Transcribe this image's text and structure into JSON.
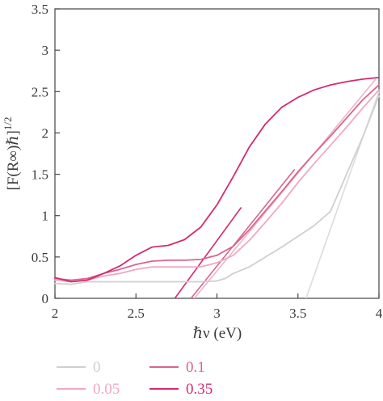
{
  "chart_data": {
    "type": "line",
    "xlabel": "ℏν (eV)",
    "ylabel": "[F(R∞)ℏ]^{1/2}",
    "ylabel_parts": {
      "main": "[F(R∞)ℏ]",
      "sup": "1/2"
    },
    "xlim": [
      2,
      4
    ],
    "ylim": [
      0,
      3.5
    ],
    "xticks": [
      "2",
      "2.5",
      "3",
      "3.5",
      "4"
    ],
    "yticks": [
      "0",
      "0.5",
      "1",
      "1.5",
      "2",
      "2.5",
      "3",
      "3.5"
    ],
    "grid": false,
    "legend_position": "bottom, two columns",
    "series": [
      {
        "name": "0",
        "color": "#cfcfcf",
        "x": [
          2.0,
          2.1,
          2.2,
          2.4,
          2.6,
          2.8,
          2.9,
          3.0,
          3.05,
          3.1,
          3.2,
          3.3,
          3.4,
          3.5,
          3.6,
          3.7,
          3.8,
          3.9,
          4.0
        ],
        "y": [
          0.18,
          0.17,
          0.2,
          0.2,
          0.2,
          0.2,
          0.2,
          0.21,
          0.24,
          0.3,
          0.38,
          0.5,
          0.62,
          0.75,
          0.88,
          1.05,
          1.5,
          1.95,
          2.45
        ]
      },
      {
        "name": "0.05",
        "color": "#f0a8c0",
        "x": [
          2.0,
          2.1,
          2.2,
          2.3,
          2.4,
          2.5,
          2.6,
          2.7,
          2.8,
          2.9,
          3.0,
          3.1,
          3.2,
          3.3,
          3.4,
          3.5,
          3.6,
          3.7,
          3.8,
          3.9,
          4.0
        ],
        "y": [
          0.22,
          0.2,
          0.22,
          0.27,
          0.3,
          0.35,
          0.38,
          0.38,
          0.38,
          0.38,
          0.43,
          0.52,
          0.7,
          0.92,
          1.15,
          1.4,
          1.63,
          1.85,
          2.07,
          2.3,
          2.52
        ]
      },
      {
        "name": "0.1",
        "color": "#d9648f",
        "x": [
          2.0,
          2.1,
          2.2,
          2.3,
          2.4,
          2.5,
          2.6,
          2.7,
          2.8,
          2.9,
          3.0,
          3.1,
          3.2,
          3.3,
          3.4,
          3.5,
          3.6,
          3.7,
          3.8,
          3.9,
          4.0
        ],
        "y": [
          0.24,
          0.22,
          0.24,
          0.3,
          0.35,
          0.41,
          0.45,
          0.46,
          0.46,
          0.47,
          0.52,
          0.63,
          0.83,
          1.06,
          1.29,
          1.53,
          1.75,
          1.96,
          2.18,
          2.4,
          2.58
        ]
      },
      {
        "name": "0.35",
        "color": "#d42a72",
        "x": [
          2.0,
          2.1,
          2.2,
          2.3,
          2.4,
          2.5,
          2.6,
          2.7,
          2.8,
          2.9,
          3.0,
          3.1,
          3.2,
          3.3,
          3.4,
          3.5,
          3.6,
          3.7,
          3.8,
          3.9,
          4.0
        ],
        "y": [
          0.25,
          0.2,
          0.22,
          0.3,
          0.39,
          0.52,
          0.62,
          0.64,
          0.71,
          0.86,
          1.13,
          1.47,
          1.83,
          2.11,
          2.31,
          2.43,
          2.52,
          2.58,
          2.62,
          2.65,
          2.67
        ]
      }
    ],
    "tangent_lines": [
      {
        "series": "0",
        "color": "#dcdcdc",
        "x": [
          3.55,
          4.0
        ],
        "y": [
          0.0,
          2.5
        ]
      },
      {
        "series": "0.05",
        "color": "#f2b3c8",
        "x": [
          2.86,
          3.98
        ],
        "y": [
          0.0,
          2.65
        ]
      },
      {
        "series": "0.1",
        "color": "#d9648f",
        "x": [
          2.84,
          3.48
        ],
        "y": [
          0.0,
          1.56
        ]
      },
      {
        "series": "0.35",
        "color": "#d42a72",
        "x": [
          2.74,
          3.15
        ],
        "y": [
          0.0,
          1.1
        ]
      }
    ]
  }
}
